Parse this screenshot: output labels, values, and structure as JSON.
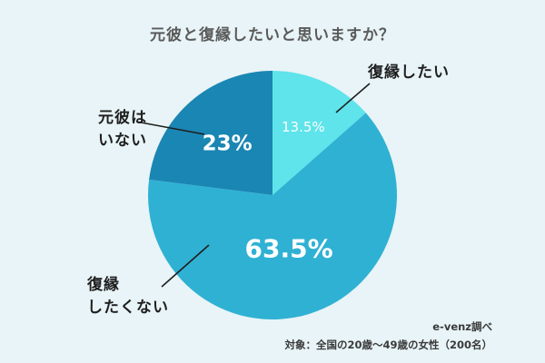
{
  "chart_data": {
    "type": "pie",
    "title": "元彼と復縁したいと思いますか？",
    "slices": [
      {
        "label": "復縁したい",
        "value": 13.5,
        "display": "13.5%",
        "color": "#5ee4ea",
        "text_color": "#ffffff"
      },
      {
        "label": "復縁\nしたくない",
        "value": 63.5,
        "display": "63.5%",
        "color": "#2fb1d3",
        "text_color": "#ffffff"
      },
      {
        "label": "元彼は\nいない",
        "value": 23,
        "display": "23%",
        "color": "#1a86b3",
        "text_color": "#ffffff"
      }
    ],
    "start_angle_deg": 0,
    "direction": "clockwise"
  },
  "footer": {
    "source": "e-venz調べ",
    "note": "対象：全国の20歳～49歳の女性（200名）"
  },
  "colors": {
    "background": "#e8f4f7",
    "leader_line": "#1f1f1f"
  }
}
